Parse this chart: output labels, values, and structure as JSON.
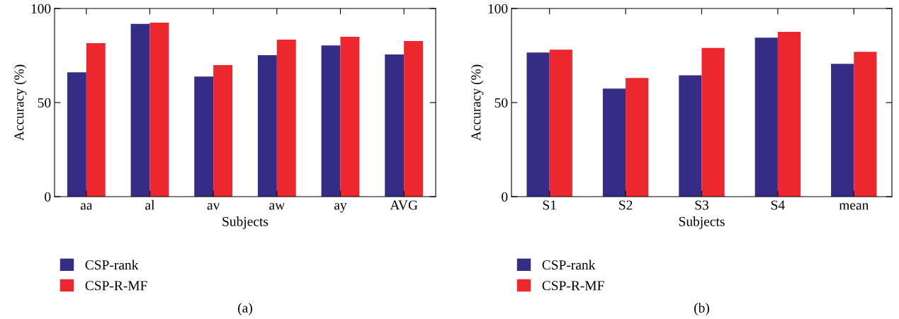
{
  "chart_data": [
    {
      "type": "bar",
      "xlabel": "Subjects",
      "ylabel": "Accuracy (%)",
      "categories": [
        "aa",
        "al",
        "av",
        "aw",
        "ay",
        "AVG"
      ],
      "series": [
        {
          "name": "CSP-rank",
          "color": "#352c85",
          "values": [
            66.1,
            91.8,
            63.8,
            75.2,
            80.4,
            75.6
          ]
        },
        {
          "name": "CSP-R-MF",
          "color": "#ec282e",
          "values": [
            81.6,
            92.5,
            69.9,
            83.5,
            85.0,
            82.7
          ]
        }
      ],
      "ylim": [
        0,
        100
      ],
      "yticks": [
        0,
        50,
        100
      ],
      "legend": "bottom left",
      "grid": false,
      "annotations": [
        "(a)"
      ]
    },
    {
      "type": "bar",
      "xlabel": "Subjects",
      "ylabel": "Accuracy (%)",
      "categories": [
        "S1",
        "S2",
        "S3",
        "S4",
        "mean"
      ],
      "series": [
        {
          "name": "CSP-rank",
          "color": "#352c85",
          "values": [
            76.6,
            57.4,
            64.5,
            84.5,
            70.6
          ]
        },
        {
          "name": "CSP-R-MF",
          "color": "#ec282e",
          "values": [
            78.1,
            63.1,
            79.0,
            87.6,
            77.0
          ]
        }
      ],
      "ylim": [
        0,
        100
      ],
      "yticks": [
        0,
        50,
        100
      ],
      "legend": "bottom left",
      "grid": false,
      "annotations": [
        "(b)"
      ]
    }
  ]
}
